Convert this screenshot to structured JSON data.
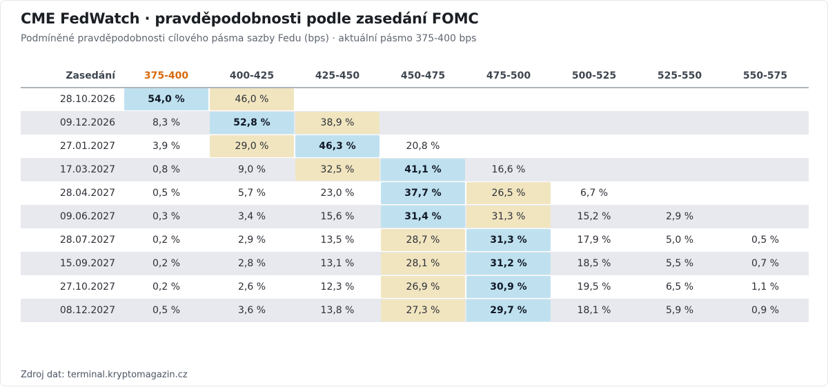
{
  "header": {
    "title": "CME FedWatch · pravděpodobnosti podle zasedání FOMC",
    "subtitle": "Podmíněné pravděpodobnosti cílového pásma sazby Fedu (bps) · aktuální pásmo 375-400 bps"
  },
  "footer": {
    "source": "Zdroj dat: terminal.kryptomagazin.cz"
  },
  "colors": {
    "current_band_header": "#d9690b",
    "highest_probability_fill": "#bfe1ef",
    "second_probability_fill": "#f1e5c0",
    "zebra_row_fill": "#e8e9ee"
  },
  "chart_data": {
    "type": "table",
    "row_header_label": "Zasedání",
    "current_band": "375-400",
    "columns": [
      "375-400",
      "400-425",
      "425-450",
      "450-475",
      "475-500",
      "500-525",
      "525-550",
      "550-575"
    ],
    "rows": [
      {
        "date": "28.10.2026",
        "values": [
          "54,0 %",
          "46,0 %",
          "",
          "",
          "",
          "",
          "",
          ""
        ],
        "highlight_max": 0,
        "highlight_second": 1
      },
      {
        "date": "09.12.2026",
        "values": [
          "8,3 %",
          "52,8 %",
          "38,9 %",
          "",
          "",
          "",
          "",
          ""
        ],
        "highlight_max": 1,
        "highlight_second": 2
      },
      {
        "date": "27.01.2027",
        "values": [
          "3,9 %",
          "29,0 %",
          "46,3 %",
          "20,8 %",
          "",
          "",
          "",
          ""
        ],
        "highlight_max": 2,
        "highlight_second": 1
      },
      {
        "date": "17.03.2027",
        "values": [
          "0,8 %",
          "9,0 %",
          "32,5 %",
          "41,1 %",
          "16,6 %",
          "",
          "",
          ""
        ],
        "highlight_max": 3,
        "highlight_second": 2
      },
      {
        "date": "28.04.2027",
        "values": [
          "0,5 %",
          "5,7 %",
          "23,0 %",
          "37,7 %",
          "26,5 %",
          "6,7 %",
          "",
          ""
        ],
        "highlight_max": 3,
        "highlight_second": 4
      },
      {
        "date": "09.06.2027",
        "values": [
          "0,3 %",
          "3,4 %",
          "15,6 %",
          "31,4 %",
          "31,3 %",
          "15,2 %",
          "2,9 %",
          ""
        ],
        "highlight_max": 3,
        "highlight_second": 4
      },
      {
        "date": "28.07.2027",
        "values": [
          "0,2 %",
          "2,9 %",
          "13,5 %",
          "28,7 %",
          "31,3 %",
          "17,9 %",
          "5,0 %",
          "0,5 %"
        ],
        "highlight_max": 4,
        "highlight_second": 3
      },
      {
        "date": "15.09.2027",
        "values": [
          "0,2 %",
          "2,8 %",
          "13,1 %",
          "28,1 %",
          "31,2 %",
          "18,5 %",
          "5,5 %",
          "0,7 %"
        ],
        "highlight_max": 4,
        "highlight_second": 3
      },
      {
        "date": "27.10.2027",
        "values": [
          "0,2 %",
          "2,6 %",
          "12,3 %",
          "26,9 %",
          "30,9 %",
          "19,5 %",
          "6,5 %",
          "1,1 %"
        ],
        "highlight_max": 4,
        "highlight_second": 3
      },
      {
        "date": "08.12.2027",
        "values": [
          "0,5 %",
          "3,6 %",
          "13,8 %",
          "27,3 %",
          "29,7 %",
          "18,1 %",
          "5,9 %",
          "0,9 %"
        ],
        "highlight_max": 4,
        "highlight_second": 3
      }
    ]
  }
}
